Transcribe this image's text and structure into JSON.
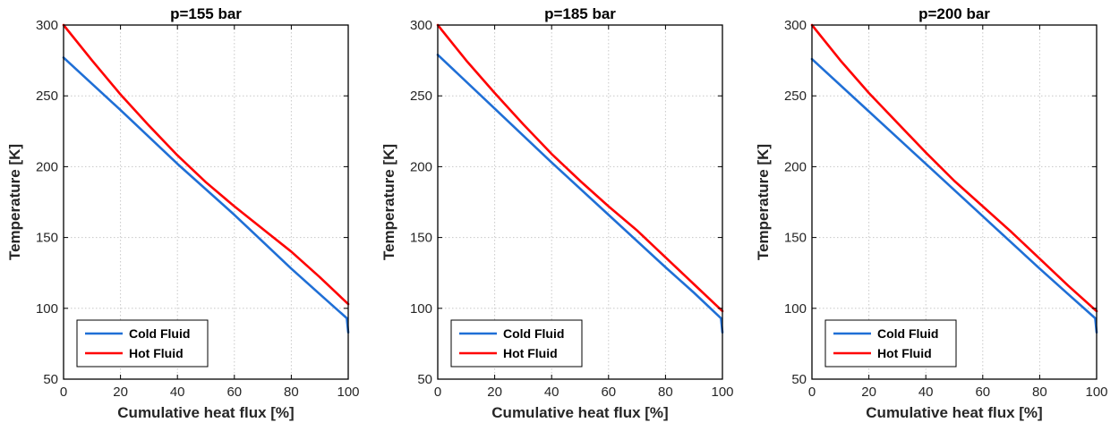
{
  "chart_data": [
    {
      "type": "line",
      "title": "p=155 bar",
      "xlabel": "Cumulative heat flux [%]",
      "ylabel": "Temperature [K]",
      "xlim": [
        0,
        100
      ],
      "ylim": [
        50,
        300
      ],
      "xticks": [
        0,
        20,
        40,
        60,
        80,
        100
      ],
      "yticks": [
        50,
        100,
        150,
        200,
        250,
        300
      ],
      "grid": true,
      "legend_position": "bottom-left",
      "series": [
        {
          "name": "Cold Fluid",
          "color": "#1f6fd6",
          "x": [
            0,
            20,
            40,
            60,
            80,
            90,
            99.5,
            100
          ],
          "y": [
            277,
            240,
            202,
            166,
            128,
            110,
            93,
            83
          ]
        },
        {
          "name": "Hot Fluid",
          "color": "#ff0000",
          "x": [
            0,
            10,
            20,
            30,
            40,
            50,
            60,
            70,
            80,
            90,
            100
          ],
          "y": [
            300,
            275,
            251,
            229,
            208,
            189,
            172,
            156,
            140,
            122,
            103
          ]
        }
      ]
    },
    {
      "type": "line",
      "title": "p=185 bar",
      "xlabel": "Cumulative heat flux [%]",
      "ylabel": "Temperature [K]",
      "xlim": [
        0,
        100
      ],
      "ylim": [
        50,
        300
      ],
      "xticks": [
        0,
        20,
        40,
        60,
        80,
        100
      ],
      "yticks": [
        50,
        100,
        150,
        200,
        250,
        300
      ],
      "grid": true,
      "legend_position": "bottom-left",
      "series": [
        {
          "name": "Cold Fluid",
          "color": "#1f6fd6",
          "x": [
            0,
            20,
            40,
            60,
            80,
            90,
            99.5,
            100
          ],
          "y": [
            279,
            241,
            203,
            166,
            129,
            111,
            93,
            83
          ]
        },
        {
          "name": "Hot Fluid",
          "color": "#ff0000",
          "x": [
            0,
            10,
            20,
            30,
            40,
            50,
            60,
            70,
            80,
            90,
            100
          ],
          "y": [
            300,
            275,
            252,
            230,
            209,
            190,
            172,
            155,
            136,
            117,
            98
          ]
        }
      ]
    },
    {
      "type": "line",
      "title": "p=200 bar",
      "xlabel": "Cumulative heat flux [%]",
      "ylabel": "Temperature [K]",
      "xlim": [
        0,
        100
      ],
      "ylim": [
        50,
        300
      ],
      "xticks": [
        0,
        20,
        40,
        60,
        80,
        100
      ],
      "yticks": [
        50,
        100,
        150,
        200,
        250,
        300
      ],
      "grid": true,
      "legend_position": "bottom-left",
      "series": [
        {
          "name": "Cold Fluid",
          "color": "#1f6fd6",
          "x": [
            0,
            20,
            40,
            60,
            80,
            90,
            99.5,
            100
          ],
          "y": [
            276,
            239,
            202,
            165,
            128,
            110,
            93,
            83
          ]
        },
        {
          "name": "Hot Fluid",
          "color": "#ff0000",
          "x": [
            0,
            10,
            20,
            30,
            40,
            50,
            60,
            70,
            80,
            90,
            100
          ],
          "y": [
            300,
            275,
            252,
            231,
            210,
            190,
            172,
            154,
            135,
            116,
            98
          ]
        }
      ]
    }
  ]
}
